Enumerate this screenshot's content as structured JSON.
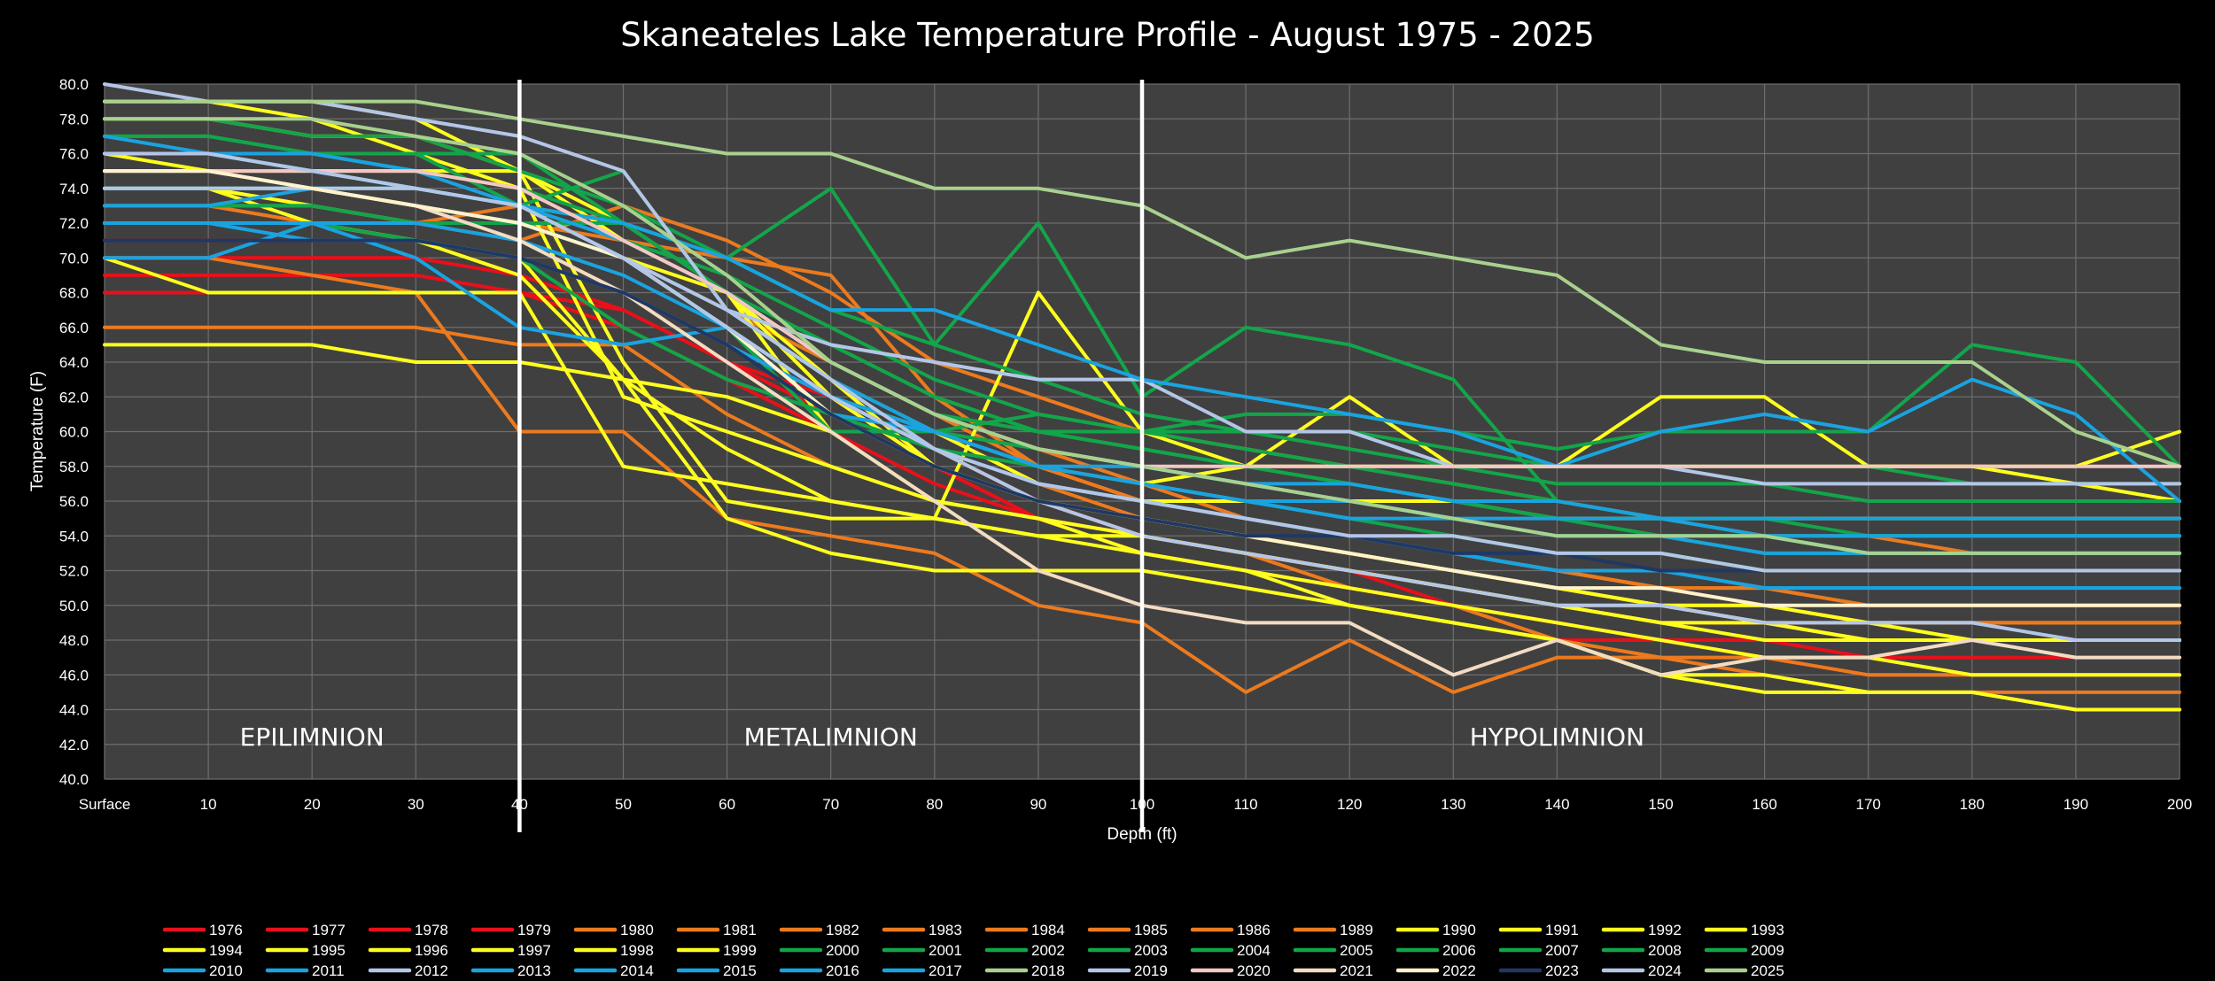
{
  "chart_data": {
    "type": "line",
    "title": "Skaneateles  Lake Temperature Profile - August 1975 - 2025",
    "xlabel": "Depth (ft)",
    "ylabel": "Temperature (F)",
    "x": [
      "Surface",
      "10",
      "20",
      "30",
      "40",
      "50",
      "60",
      "70",
      "80",
      "90",
      "100",
      "110",
      "120",
      "130",
      "140",
      "150",
      "160",
      "170",
      "180",
      "190",
      "200"
    ],
    "ylim": [
      40,
      80
    ],
    "yticks": [
      "40.0",
      "42.0",
      "44.0",
      "46.0",
      "48.0",
      "50.0",
      "52.0",
      "54.0",
      "56.0",
      "58.0",
      "60.0",
      "62.0",
      "64.0",
      "66.0",
      "68.0",
      "70.0",
      "72.0",
      "74.0",
      "76.0",
      "78.0",
      "80.0"
    ],
    "grid": true,
    "legend_position": "bottom",
    "divider_lines_at": [
      "40",
      "100"
    ],
    "zones": [
      {
        "label": "EPILIMNION",
        "x": "20"
      },
      {
        "label": "METALIMNION",
        "x": "70"
      },
      {
        "label": "HYPOLIMNION",
        "x": "140"
      }
    ],
    "series": [
      {
        "name": "1976",
        "color": "#e8101a",
        "values": [
          69,
          69,
          69,
          69,
          68,
          66,
          63,
          60,
          57,
          55,
          54,
          53,
          51,
          50,
          49,
          48,
          47,
          46,
          46,
          46,
          46
        ]
      },
      {
        "name": "1977",
        "color": "#e8101a",
        "values": [
          68,
          68,
          68,
          68,
          68,
          67,
          64,
          61,
          58,
          55,
          53,
          52,
          51,
          50,
          49,
          48,
          48,
          47,
          47,
          47,
          47
        ]
      },
      {
        "name": "1978",
        "color": "#e8101a",
        "values": [
          70,
          70,
          70,
          70,
          69,
          67,
          64,
          62,
          59,
          56,
          54,
          53,
          52,
          50,
          48,
          48,
          48,
          48,
          48,
          48,
          48
        ]
      },
      {
        "name": "1979",
        "color": "#e8101a",
        "values": [
          71,
          71,
          71,
          71,
          70,
          68,
          65,
          62,
          58,
          55,
          54,
          53,
          52,
          51,
          50,
          49,
          49,
          48,
          48,
          48,
          48
        ]
      },
      {
        "name": "1980",
        "color": "#ec7a1e",
        "values": [
          66,
          66,
          66,
          66,
          65,
          65,
          61,
          58,
          56,
          55,
          54,
          53,
          52,
          51,
          50,
          50,
          49,
          49,
          49,
          49,
          49
        ]
      },
      {
        "name": "1981",
        "color": "#ec7a1e",
        "values": [
          72,
          72,
          72,
          72,
          72,
          70,
          67,
          64,
          61,
          59,
          57,
          55,
          54,
          53,
          52,
          51,
          51,
          50,
          50,
          50,
          50
        ]
      },
      {
        "name": "1982",
        "color": "#ec7a1e",
        "values": [
          70,
          70,
          69,
          68,
          60,
          60,
          55,
          54,
          53,
          50,
          49,
          45,
          48,
          45,
          47,
          47,
          46,
          45,
          45,
          45,
          45
        ]
      },
      {
        "name": "1983",
        "color": "#ec7a1e",
        "values": [
          73,
          73,
          73,
          72,
          72,
          70,
          66,
          62,
          59,
          56,
          54,
          53,
          51,
          50,
          48,
          47,
          47,
          46,
          46,
          46,
          46
        ]
      },
      {
        "name": "1984",
        "color": "#ec7a1e",
        "values": [
          74,
          74,
          74,
          73,
          72,
          71,
          70,
          69,
          62,
          58,
          56,
          55,
          54,
          53,
          52,
          51,
          51,
          50,
          50,
          50,
          50
        ]
      },
      {
        "name": "1985",
        "color": "#ec7a1e",
        "values": [
          72,
          72,
          72,
          72,
          71,
          73,
          71,
          68,
          64,
          62,
          60,
          59,
          58,
          57,
          56,
          55,
          54,
          54,
          53,
          53,
          53
        ]
      },
      {
        "name": "1986",
        "color": "#ec7a1e",
        "values": [
          72,
          72,
          72,
          72,
          72,
          70,
          67,
          63,
          60,
          57,
          55,
          54,
          53,
          52,
          51,
          50,
          50,
          49,
          49,
          49,
          49
        ]
      },
      {
        "name": "1989",
        "color": "#ec7a1e",
        "values": [
          73,
          73,
          72,
          72,
          73,
          72,
          68,
          64,
          61,
          58,
          56,
          55,
          54,
          53,
          52,
          51,
          50,
          49,
          49,
          49,
          49
        ]
      },
      {
        "name": "1990",
        "color": "#ffff1e",
        "values": [
          79,
          79,
          78,
          76,
          74,
          62,
          60,
          58,
          56,
          55,
          54,
          53,
          52,
          51,
          50,
          49,
          48,
          48,
          48,
          48,
          48
        ]
      },
      {
        "name": "1991",
        "color": "#ffff1e",
        "values": [
          70,
          68,
          68,
          68,
          68,
          58,
          57,
          56,
          55,
          54,
          54,
          53,
          52,
          51,
          50,
          49,
          49,
          48,
          48,
          48,
          48
        ]
      },
      {
        "name": "1992",
        "color": "#ffff1e",
        "values": [
          65,
          65,
          65,
          64,
          64,
          63,
          62,
          60,
          56,
          55,
          53,
          52,
          50,
          49,
          48,
          46,
          45,
          45,
          45,
          44,
          44
        ]
      },
      {
        "name": "1993",
        "color": "#ffff1e",
        "values": [
          74,
          74,
          72,
          71,
          70,
          63,
          59,
          56,
          55,
          54,
          53,
          52,
          51,
          50,
          49,
          48,
          47,
          47,
          46,
          46,
          46
        ]
      },
      {
        "name": "1994",
        "color": "#ffff1e",
        "values": [
          72,
          72,
          72,
          71,
          69,
          63,
          55,
          53,
          52,
          52,
          52,
          51,
          50,
          49,
          48,
          46,
          46,
          45,
          45,
          44,
          44
        ]
      },
      {
        "name": "1995",
        "color": "#ffff1e",
        "values": [
          79,
          79,
          79,
          78,
          75,
          64,
          56,
          55,
          55,
          68,
          60,
          58,
          62,
          58,
          58,
          62,
          62,
          58,
          58,
          58,
          60
        ]
      },
      {
        "name": "1996",
        "color": "#ffff1e",
        "values": [
          76,
          75,
          75,
          75,
          75,
          71,
          68,
          60,
          60,
          57,
          56,
          56,
          56,
          56,
          55,
          55,
          55,
          55,
          55,
          55,
          55
        ]
      },
      {
        "name": "1997",
        "color": "#ffff1e",
        "values": [
          74,
          74,
          73,
          72,
          72,
          70,
          68,
          62,
          58,
          56,
          55,
          54,
          53,
          52,
          51,
          50,
          50,
          49,
          48,
          48,
          48
        ]
      },
      {
        "name": "1998",
        "color": "#ffff1e",
        "values": [
          74,
          74,
          74,
          73,
          72,
          70,
          66,
          62,
          60,
          58,
          57,
          58,
          58,
          58,
          58,
          58,
          58,
          58,
          58,
          57,
          56
        ]
      },
      {
        "name": "1999",
        "color": "#ffff1e",
        "values": [
          78,
          78,
          77,
          77,
          75,
          72,
          68,
          63,
          58,
          56,
          55,
          54,
          53,
          52,
          51,
          50,
          49,
          48,
          48,
          48,
          48
        ]
      },
      {
        "name": "2000",
        "color": "#13a54a",
        "values": [
          73,
          73,
          73,
          72,
          72,
          72,
          70,
          74,
          65,
          72,
          62,
          66,
          65,
          63,
          56,
          55,
          54,
          54,
          54,
          54,
          54
        ]
      },
      {
        "name": "2001",
        "color": "#13a54a",
        "values": [
          77,
          77,
          76,
          76,
          76,
          72,
          68,
          65,
          62,
          60,
          59,
          58,
          57,
          56,
          55,
          54,
          54,
          53,
          53,
          53,
          53
        ]
      },
      {
        "name": "2002",
        "color": "#13a54a",
        "values": [
          76,
          76,
          75,
          74,
          73,
          70,
          66,
          62,
          60,
          58,
          57,
          56,
          55,
          54,
          53,
          53,
          52,
          52,
          52,
          52,
          52
        ]
      },
      {
        "name": "2003",
        "color": "#13a54a",
        "values": [
          77,
          77,
          76,
          76,
          73,
          75,
          67,
          63,
          60,
          59,
          58,
          57,
          56,
          55,
          54,
          54,
          53,
          53,
          53,
          53,
          53
        ]
      },
      {
        "name": "2004",
        "color": "#13a54a",
        "values": [
          74,
          74,
          74,
          74,
          73,
          72,
          68,
          65,
          62,
          60,
          59,
          58,
          57,
          56,
          55,
          54,
          54,
          53,
          53,
          53,
          53
        ]
      },
      {
        "name": "2005",
        "color": "#13a54a",
        "values": [
          78,
          78,
          77,
          77,
          75,
          73,
          70,
          67,
          65,
          63,
          61,
          60,
          59,
          58,
          57,
          57,
          57,
          56,
          56,
          56,
          56
        ]
      },
      {
        "name": "2006",
        "color": "#13a54a",
        "values": [
          72,
          72,
          72,
          71,
          70,
          66,
          63,
          61,
          59,
          58,
          57,
          56,
          55,
          54,
          53,
          53,
          52,
          52,
          52,
          52,
          52
        ]
      },
      {
        "name": "2007",
        "color": "#13a54a",
        "values": [
          75,
          75,
          75,
          74,
          73,
          71,
          69,
          66,
          63,
          61,
          60,
          59,
          58,
          57,
          56,
          55,
          55,
          54,
          54,
          54,
          54
        ]
      },
      {
        "name": "2008",
        "color": "#13a54a",
        "values": [
          73,
          73,
          73,
          72,
          72,
          70,
          66,
          60,
          60,
          61,
          60,
          60,
          60,
          59,
          58,
          58,
          58,
          58,
          57,
          57,
          57
        ]
      },
      {
        "name": "2009",
        "color": "#13a54a",
        "values": [
          76,
          76,
          76,
          75,
          74,
          72,
          68,
          64,
          61,
          60,
          60,
          61,
          61,
          60,
          59,
          60,
          60,
          60,
          65,
          64,
          58
        ]
      },
      {
        "name": "2010",
        "color": "#1aa3e0",
        "values": [
          77,
          76,
          76,
          75,
          73,
          70,
          66,
          62,
          59,
          57,
          56,
          55,
          54,
          53,
          52,
          52,
          51,
          51,
          51,
          51,
          51
        ]
      },
      {
        "name": "2011",
        "color": "#1aa3e0",
        "values": [
          72,
          72,
          72,
          72,
          71,
          69,
          66,
          62,
          59,
          57,
          56,
          55,
          54,
          53,
          52,
          52,
          51,
          51,
          51,
          51,
          51
        ]
      },
      {
        "name": "2012",
        "color": "#b4c6e7",
        "values": [
          80,
          79,
          79,
          78,
          77,
          75,
          67,
          65,
          64,
          63,
          63,
          60,
          60,
          58,
          58,
          58,
          57,
          57,
          57,
          57,
          57
        ]
      },
      {
        "name": "2013",
        "color": "#1aa3e0",
        "values": [
          74,
          74,
          74,
          74,
          73,
          72,
          70,
          67,
          67,
          65,
          63,
          62,
          61,
          60,
          58,
          60,
          61,
          60,
          63,
          61,
          56
        ]
      },
      {
        "name": "2014",
        "color": "#1aa3e0",
        "values": [
          76,
          76,
          75,
          74,
          73,
          71,
          68,
          64,
          61,
          59,
          58,
          57,
          56,
          55,
          54,
          54,
          53,
          53,
          53,
          53,
          53
        ]
      },
      {
        "name": "2015",
        "color": "#1aa3e0",
        "values": [
          70,
          70,
          72,
          70,
          66,
          65,
          66,
          61,
          60,
          58,
          58,
          57,
          57,
          56,
          56,
          55,
          55,
          55,
          55,
          55,
          55
        ]
      },
      {
        "name": "2016",
        "color": "#1aa3e0",
        "values": [
          72,
          72,
          71,
          71,
          70,
          68,
          65,
          62,
          60,
          58,
          57,
          56,
          56,
          55,
          55,
          55,
          54,
          54,
          54,
          54,
          54
        ]
      },
      {
        "name": "2017",
        "color": "#1aa3e0",
        "values": [
          73,
          73,
          74,
          73,
          72,
          70,
          67,
          63,
          60,
          58,
          57,
          56,
          55,
          55,
          54,
          54,
          54,
          53,
          53,
          53,
          53
        ]
      },
      {
        "name": "2018",
        "color": "#a9d18e",
        "values": [
          79,
          79,
          79,
          79,
          78,
          77,
          76,
          76,
          74,
          74,
          73,
          70,
          71,
          70,
          69,
          65,
          64,
          64,
          64,
          60,
          58
        ]
      },
      {
        "name": "2019",
        "color": "#b4c6e7",
        "values": [
          74,
          74,
          74,
          74,
          73,
          70,
          67,
          63,
          59,
          56,
          54,
          53,
          52,
          51,
          50,
          50,
          49,
          49,
          49,
          48,
          48
        ]
      },
      {
        "name": "2020",
        "color": "#f4c7c3",
        "values": [
          75,
          75,
          75,
          75,
          74,
          71,
          68,
          64,
          61,
          59,
          58,
          58,
          58,
          58,
          58,
          58,
          58,
          58,
          58,
          58,
          58
        ]
      },
      {
        "name": "2021",
        "color": "#f2dcc2",
        "values": [
          75,
          75,
          74,
          73,
          71,
          68,
          64,
          60,
          56,
          52,
          50,
          49,
          49,
          46,
          48,
          46,
          47,
          47,
          48,
          47,
          47
        ]
      },
      {
        "name": "2022",
        "color": "#fff2cc",
        "values": [
          75,
          75,
          74,
          73,
          72,
          70,
          66,
          61,
          58,
          56,
          55,
          54,
          53,
          52,
          51,
          51,
          50,
          50,
          50,
          50,
          50
        ]
      },
      {
        "name": "2023",
        "color": "#1f3864",
        "values": [
          71,
          71,
          71,
          71,
          70,
          68,
          65,
          61,
          58,
          56,
          55,
          54,
          54,
          53,
          53,
          52,
          52,
          52,
          52,
          52,
          52
        ]
      },
      {
        "name": "2024",
        "color": "#b4c6e7",
        "values": [
          76,
          76,
          75,
          74,
          73,
          70,
          66,
          62,
          59,
          57,
          56,
          55,
          54,
          54,
          53,
          53,
          52,
          52,
          52,
          52,
          52
        ]
      },
      {
        "name": "2025",
        "color": "#a9d18e",
        "values": [
          78,
          78,
          78,
          77,
          76,
          73,
          69,
          64,
          61,
          59,
          58,
          57,
          56,
          55,
          54,
          54,
          54,
          53,
          53,
          53,
          53
        ]
      }
    ]
  }
}
